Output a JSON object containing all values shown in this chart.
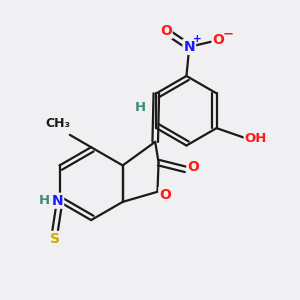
{
  "fig_bg": "#f0f0f2",
  "bond_color": "#1a1a1a",
  "bond_lw": 1.6,
  "dbo": 0.055,
  "atom_colors": {
    "N_nitro": "#1a1aff",
    "N_ring": "#1a1aff",
    "O": "#ff1a1a",
    "S": "#ccaa00",
    "H": "#3a8a7a",
    "C": "#1a1a1a"
  },
  "fs": 9.5,
  "xlim": [
    0.3,
    5.5
  ],
  "ylim": [
    0.5,
    5.8
  ]
}
